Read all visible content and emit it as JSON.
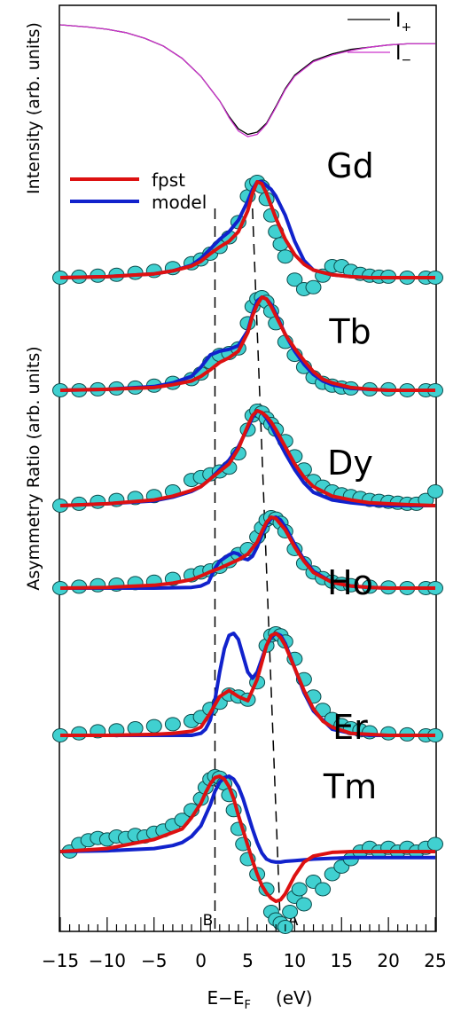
{
  "chart_data": {
    "type": "line",
    "xlabel": "E−E",
    "xlabel_sub": "F",
    "xlabel_unit": "(eV)",
    "xlim": [
      -15,
      25
    ],
    "xticks": [
      -15,
      -10,
      -5,
      0,
      5,
      10,
      15,
      20,
      25
    ],
    "xtick_labels": [
      "−15",
      "−10",
      "−5",
      "0",
      "5",
      "10",
      "15",
      "20",
      "25"
    ],
    "ylabel_top": "Intensity (arb. units)",
    "ylabel_bottom": "Asymmetry Ratio (arb. units)",
    "legend_top": [
      {
        "name": "I",
        "sub": "+",
        "color": "#000000"
      },
      {
        "name": "I",
        "sub": "−",
        "color": "#cc33cc"
      }
    ],
    "legend_main": [
      {
        "name": "fpst",
        "color": "#dd1111"
      },
      {
        "name": "model",
        "color": "#1122cc"
      }
    ],
    "markers": [
      {
        "label": "B",
        "x_bottom": 1.5,
        "x_top": 1.5
      },
      {
        "label": "A",
        "x_bottom": 8.5,
        "x_top": 5.5
      }
    ],
    "intensity": {
      "x": [
        -15,
        -12,
        -10,
        -8,
        -6,
        -4,
        -2,
        0,
        2,
        3,
        4,
        5,
        6,
        7,
        8,
        9,
        10,
        12,
        14,
        16,
        18,
        20,
        22,
        25
      ],
      "I_plus": [
        0.0,
        0.02,
        0.04,
        0.07,
        0.12,
        0.19,
        0.3,
        0.46,
        0.68,
        0.82,
        0.93,
        0.98,
        0.96,
        0.88,
        0.73,
        0.57,
        0.45,
        0.32,
        0.26,
        0.22,
        0.2,
        0.18,
        0.17,
        0.17
      ],
      "I_minus": [
        0.0,
        0.02,
        0.04,
        0.07,
        0.12,
        0.19,
        0.3,
        0.46,
        0.68,
        0.83,
        0.95,
        1.0,
        0.98,
        0.89,
        0.74,
        0.58,
        0.46,
        0.33,
        0.27,
        0.23,
        0.2,
        0.18,
        0.17,
        0.17
      ]
    },
    "panels": [
      {
        "element": "Gd",
        "data_x": [
          -15,
          -13,
          -11,
          -9,
          -7,
          -5,
          -3,
          -1,
          0,
          1,
          2,
          3,
          4,
          5,
          5.5,
          6,
          6.5,
          7,
          7.5,
          8,
          8.5,
          9,
          10,
          11,
          12,
          13,
          14,
          15,
          16,
          17,
          18,
          19,
          20,
          22,
          24,
          25
        ],
        "data_y": [
          0.0,
          0.01,
          0.02,
          0.03,
          0.05,
          0.07,
          0.1,
          0.15,
          0.19,
          0.25,
          0.32,
          0.42,
          0.58,
          0.85,
          0.97,
          1.0,
          0.95,
          0.82,
          0.65,
          0.48,
          0.35,
          0.22,
          -0.02,
          -0.12,
          -0.1,
          0.02,
          0.12,
          0.12,
          0.07,
          0.04,
          0.02,
          0.01,
          0.01,
          0.0,
          0.0,
          0.0
        ],
        "fpst_x": [
          -15,
          -10,
          -5,
          -3,
          -1,
          0,
          1,
          2,
          3,
          4,
          5,
          5.5,
          6,
          6.5,
          7,
          7.5,
          8,
          9,
          10,
          11,
          12,
          14,
          16,
          18,
          20,
          25
        ],
        "fpst_y": [
          0.0,
          0.01,
          0.04,
          0.07,
          0.12,
          0.17,
          0.25,
          0.32,
          0.38,
          0.48,
          0.7,
          0.88,
          1.0,
          0.98,
          0.88,
          0.75,
          0.62,
          0.4,
          0.24,
          0.14,
          0.08,
          0.03,
          0.01,
          0.0,
          0.0,
          0.0
        ],
        "model_x": [
          -15,
          -10,
          -5,
          -3,
          -1,
          0,
          1,
          2,
          3,
          4,
          5,
          5.5,
          6,
          6.5,
          7,
          7.5,
          8,
          9,
          10,
          11,
          12,
          14,
          16,
          18,
          20,
          25
        ],
        "model_y": [
          0.0,
          0.01,
          0.04,
          0.07,
          0.13,
          0.2,
          0.3,
          0.4,
          0.48,
          0.6,
          0.8,
          0.92,
          1.0,
          1.0,
          0.96,
          0.92,
          0.85,
          0.65,
          0.38,
          0.18,
          0.08,
          0.03,
          0.01,
          0.0,
          0.0,
          0.0
        ]
      },
      {
        "element": "Tb",
        "data_x": [
          -15,
          -13,
          -11,
          -9,
          -7,
          -5,
          -3,
          -1,
          0,
          1,
          2,
          3,
          4,
          5,
          5.5,
          6,
          6.5,
          7,
          7.5,
          8,
          9,
          10,
          11,
          12,
          13,
          14,
          15,
          16,
          18,
          20,
          22,
          24,
          25
        ],
        "data_y": [
          0.0,
          0.0,
          0.01,
          0.02,
          0.03,
          0.05,
          0.08,
          0.12,
          0.18,
          0.3,
          0.38,
          0.4,
          0.45,
          0.72,
          0.9,
          0.98,
          1.0,
          0.95,
          0.85,
          0.72,
          0.52,
          0.38,
          0.25,
          0.14,
          0.08,
          0.05,
          0.03,
          0.02,
          0.01,
          0.01,
          0.0,
          0.0,
          0.0
        ],
        "fpst_x": [
          -15,
          -10,
          -5,
          -3,
          -1,
          0,
          1,
          2,
          3,
          4,
          5,
          5.5,
          6,
          6.5,
          7,
          7.5,
          8,
          9,
          10,
          11,
          12,
          13,
          14,
          16,
          18,
          20,
          25
        ],
        "fpst_y": [
          0.0,
          0.01,
          0.03,
          0.06,
          0.1,
          0.15,
          0.22,
          0.3,
          0.35,
          0.42,
          0.62,
          0.8,
          0.92,
          1.0,
          0.98,
          0.9,
          0.8,
          0.6,
          0.45,
          0.32,
          0.2,
          0.12,
          0.08,
          0.03,
          0.01,
          0.0,
          0.0
        ],
        "model_x": [
          -15,
          -10,
          -5,
          -3,
          -1,
          0,
          1,
          2,
          3,
          4,
          5,
          5.5,
          6,
          6.5,
          7,
          7.5,
          8,
          9,
          10,
          11,
          12,
          13,
          14,
          16,
          18,
          20,
          25
        ],
        "model_y": [
          0.0,
          0.01,
          0.04,
          0.08,
          0.15,
          0.25,
          0.38,
          0.42,
          0.44,
          0.48,
          0.64,
          0.82,
          0.96,
          1.0,
          0.98,
          0.92,
          0.82,
          0.6,
          0.42,
          0.28,
          0.17,
          0.1,
          0.06,
          0.02,
          0.01,
          0.0,
          0.0
        ]
      },
      {
        "element": "Dy",
        "data_x": [
          -15,
          -13,
          -11,
          -9,
          -7,
          -5,
          -3,
          -1,
          0,
          1,
          2,
          3,
          4,
          5,
          5.5,
          6,
          6.5,
          7,
          7.5,
          8,
          9,
          10,
          11,
          12,
          13,
          14,
          15,
          16,
          17,
          18,
          19,
          20,
          21,
          22,
          23,
          24,
          25
        ],
        "data_y": [
          0.0,
          0.02,
          0.04,
          0.06,
          0.08,
          0.1,
          0.15,
          0.27,
          0.3,
          0.33,
          0.36,
          0.4,
          0.55,
          0.8,
          0.95,
          1.0,
          0.98,
          0.92,
          0.86,
          0.8,
          0.68,
          0.52,
          0.38,
          0.26,
          0.2,
          0.15,
          0.12,
          0.1,
          0.08,
          0.06,
          0.05,
          0.04,
          0.03,
          0.02,
          0.02,
          0.06,
          0.15
        ],
        "fpst_x": [
          -15,
          -10,
          -5,
          -3,
          -1,
          0,
          1,
          2,
          3,
          4,
          5,
          5.5,
          6,
          6.5,
          7,
          7.5,
          8,
          9,
          10,
          11,
          12,
          14,
          16,
          18,
          20,
          22,
          25
        ],
        "fpst_y": [
          0.0,
          0.02,
          0.06,
          0.1,
          0.16,
          0.2,
          0.28,
          0.36,
          0.44,
          0.6,
          0.84,
          0.95,
          1.0,
          0.98,
          0.94,
          0.88,
          0.8,
          0.62,
          0.44,
          0.3,
          0.2,
          0.1,
          0.06,
          0.03,
          0.02,
          0.01,
          0.0
        ],
        "model_x": [
          -15,
          -10,
          -5,
          -3,
          -1,
          0,
          1,
          2,
          3,
          4,
          5,
          5.5,
          6,
          6.5,
          7,
          7.5,
          8,
          9,
          10,
          11,
          12,
          14,
          16,
          18,
          20,
          22,
          25
        ],
        "model_y": [
          0.0,
          0.02,
          0.05,
          0.09,
          0.15,
          0.2,
          0.28,
          0.38,
          0.48,
          0.62,
          0.82,
          0.93,
          1.0,
          0.98,
          0.92,
          0.84,
          0.74,
          0.55,
          0.38,
          0.24,
          0.14,
          0.06,
          0.03,
          0.01,
          0.0,
          0.0,
          0.0
        ]
      },
      {
        "element": "Ho",
        "data_x": [
          -15,
          -13,
          -11,
          -9,
          -7,
          -5,
          -3,
          -1,
          0,
          1,
          2,
          3,
          4,
          5,
          6,
          6.5,
          7,
          7.5,
          8,
          8.5,
          9,
          10,
          11,
          12,
          13,
          14,
          15,
          16,
          18,
          20,
          22,
          24,
          25
        ],
        "data_y": [
          0.0,
          0.02,
          0.04,
          0.05,
          0.07,
          0.09,
          0.13,
          0.18,
          0.22,
          0.25,
          0.3,
          0.38,
          0.48,
          0.55,
          0.72,
          0.85,
          0.96,
          1.0,
          0.98,
          0.92,
          0.8,
          0.55,
          0.35,
          0.22,
          0.14,
          0.09,
          0.06,
          0.04,
          0.02,
          0.01,
          0.0,
          0.0,
          0.0
        ],
        "fpst_x": [
          -15,
          -10,
          -5,
          -3,
          -1,
          0,
          1,
          2,
          3,
          4,
          5,
          6,
          6.5,
          7,
          7.5,
          8,
          9,
          10,
          11,
          12,
          14,
          16,
          18,
          20,
          25
        ],
        "fpst_y": [
          0.0,
          0.01,
          0.04,
          0.07,
          0.12,
          0.17,
          0.23,
          0.28,
          0.34,
          0.4,
          0.48,
          0.65,
          0.8,
          0.93,
          1.0,
          0.98,
          0.82,
          0.58,
          0.38,
          0.22,
          0.08,
          0.03,
          0.01,
          0.0,
          0.0
        ],
        "model_x": [
          -15,
          -5,
          -1,
          0,
          0.8,
          1.5,
          2,
          3,
          3.5,
          4,
          4.5,
          5,
          5.5,
          6,
          6.5,
          7,
          7.5,
          8,
          8.5,
          9,
          10,
          11,
          12,
          14,
          16,
          18,
          20,
          25
        ],
        "model_y": [
          0.0,
          0.0,
          0.01,
          0.03,
          0.08,
          0.28,
          0.38,
          0.47,
          0.5,
          0.48,
          0.42,
          0.4,
          0.45,
          0.58,
          0.75,
          0.9,
          0.98,
          1.0,
          0.96,
          0.86,
          0.62,
          0.4,
          0.24,
          0.08,
          0.03,
          0.01,
          0.0,
          0.0
        ]
      },
      {
        "element": "Er",
        "data_x": [
          -15,
          -13,
          -11,
          -9,
          -7,
          -5,
          -3,
          -1,
          0,
          1,
          2,
          3,
          4,
          5,
          6,
          7,
          7.5,
          8,
          8.5,
          9,
          10,
          11,
          12,
          13,
          14,
          15,
          16,
          17,
          18,
          20,
          22,
          24,
          25
        ],
        "data_y": [
          0.0,
          0.02,
          0.04,
          0.05,
          0.07,
          0.09,
          0.11,
          0.14,
          0.18,
          0.26,
          0.32,
          0.4,
          0.38,
          0.35,
          0.52,
          0.88,
          0.98,
          1.0,
          0.98,
          0.92,
          0.75,
          0.55,
          0.38,
          0.25,
          0.16,
          0.1,
          0.07,
          0.05,
          0.03,
          0.02,
          0.01,
          0.0,
          0.0
        ],
        "fpst_x": [
          -15,
          -10,
          -5,
          -3,
          -1,
          0,
          1,
          2,
          3,
          4,
          5,
          6,
          7,
          7.5,
          8,
          8.5,
          9,
          10,
          11,
          12,
          13,
          14,
          16,
          18,
          20,
          25
        ],
        "fpst_y": [
          0.0,
          0.0,
          0.01,
          0.02,
          0.04,
          0.08,
          0.22,
          0.38,
          0.44,
          0.38,
          0.34,
          0.55,
          0.88,
          0.98,
          1.0,
          0.96,
          0.88,
          0.66,
          0.44,
          0.26,
          0.14,
          0.08,
          0.02,
          0.01,
          0.0,
          0.0
        ],
        "model_x": [
          -15,
          -10,
          -5,
          -2,
          -1,
          0,
          0.5,
          1,
          1.5,
          2,
          2.5,
          3,
          3.5,
          4,
          4.5,
          5,
          5.5,
          6,
          7,
          7.5,
          8,
          8.5,
          9,
          10,
          11,
          12,
          14,
          16,
          18,
          25
        ],
        "model_y": [
          0.0,
          0.0,
          0.0,
          0.0,
          0.0,
          0.02,
          0.06,
          0.15,
          0.35,
          0.62,
          0.85,
          0.98,
          1.0,
          0.94,
          0.78,
          0.62,
          0.56,
          0.62,
          0.88,
          0.96,
          1.0,
          0.98,
          0.9,
          0.66,
          0.42,
          0.24,
          0.06,
          0.02,
          0.0,
          0.0
        ]
      },
      {
        "element": "Tm",
        "data_x": [
          -14,
          -13,
          -12,
          -11,
          -10,
          -9,
          -8,
          -7,
          -6,
          -5,
          -4,
          -3,
          -2,
          -1,
          0,
          0.5,
          1,
          1.5,
          2,
          2.5,
          3,
          3.5,
          4,
          4.5,
          5,
          6,
          7,
          7.5,
          8,
          8.5,
          9,
          9.5,
          10,
          10.5,
          11,
          12,
          13,
          14,
          15,
          16,
          17,
          18,
          19,
          20,
          21,
          22,
          23,
          24,
          25
        ],
        "data_y": [
          0.0,
          0.1,
          0.15,
          0.18,
          0.16,
          0.2,
          0.18,
          0.22,
          0.2,
          0.25,
          0.28,
          0.35,
          0.42,
          0.55,
          0.7,
          0.85,
          0.96,
          1.0,
          0.98,
          0.9,
          0.75,
          0.55,
          0.3,
          0.1,
          -0.1,
          -0.3,
          -0.5,
          -0.8,
          -0.9,
          -0.95,
          -1.0,
          -0.8,
          -0.6,
          -0.5,
          -0.7,
          -0.4,
          -0.5,
          -0.3,
          -0.2,
          -0.1,
          0.0,
          0.05,
          0.0,
          0.05,
          0.0,
          0.05,
          0.0,
          0.05,
          0.1
        ],
        "fpst_x": [
          -15,
          -10,
          -5,
          -2,
          -1,
          0,
          0.5,
          1,
          1.5,
          2,
          2.5,
          3,
          3.5,
          4,
          4.5,
          5,
          5.5,
          6,
          6.5,
          7,
          7.5,
          8,
          8.5,
          9,
          9.5,
          10,
          11,
          12,
          14,
          16,
          18,
          20,
          25
        ],
        "fpst_y": [
          0.0,
          0.04,
          0.16,
          0.3,
          0.45,
          0.64,
          0.78,
          0.9,
          0.98,
          1.0,
          0.96,
          0.86,
          0.7,
          0.48,
          0.28,
          0.08,
          -0.12,
          -0.3,
          -0.45,
          -0.55,
          -0.62,
          -0.66,
          -0.64,
          -0.56,
          -0.44,
          -0.32,
          -0.14,
          -0.06,
          -0.01,
          0.0,
          0.0,
          0.0,
          0.0
        ],
        "model_x": [
          -15,
          -10,
          -5,
          -3,
          -2,
          -1,
          0,
          1,
          1.5,
          2,
          2.5,
          3,
          3.5,
          4,
          4.5,
          5,
          5.5,
          6,
          6.5,
          7,
          7.5,
          8,
          8.5,
          9,
          10,
          12,
          14,
          16,
          18,
          20,
          25
        ],
        "model_y": [
          0.0,
          0.01,
          0.04,
          0.08,
          0.12,
          0.2,
          0.34,
          0.62,
          0.8,
          0.92,
          0.98,
          1.0,
          0.96,
          0.86,
          0.7,
          0.5,
          0.3,
          0.12,
          -0.02,
          -0.1,
          -0.13,
          -0.14,
          -0.14,
          -0.13,
          -0.12,
          -0.1,
          -0.09,
          -0.08,
          -0.08,
          -0.08,
          -0.08
        ]
      }
    ]
  }
}
